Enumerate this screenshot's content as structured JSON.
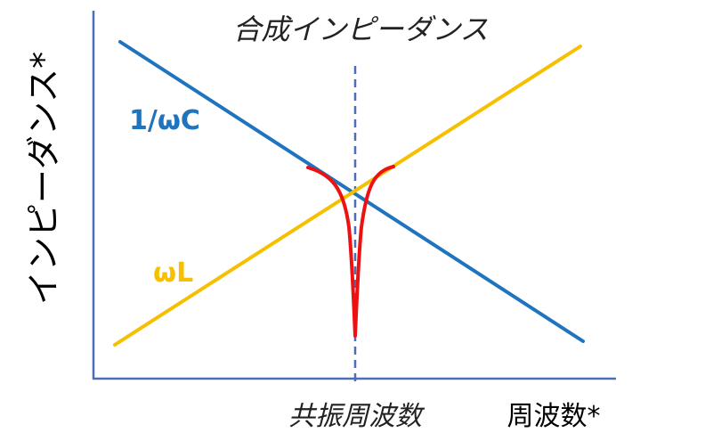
{
  "title": "合成インピーダンス",
  "y_axis_label": "インピーダンス*",
  "x_axis_label": "周波数*",
  "resonance_label": "共振周波数",
  "curves": {
    "capacitive": {
      "label": "1/ωC",
      "color": "#1f74c0"
    },
    "inductive": {
      "label": "ωL",
      "color": "#f6c000"
    },
    "combined": {
      "color": "#ee1111"
    }
  },
  "colors": {
    "axis": "#4a6fb5",
    "resonance_line": "#4a6fb5"
  }
}
